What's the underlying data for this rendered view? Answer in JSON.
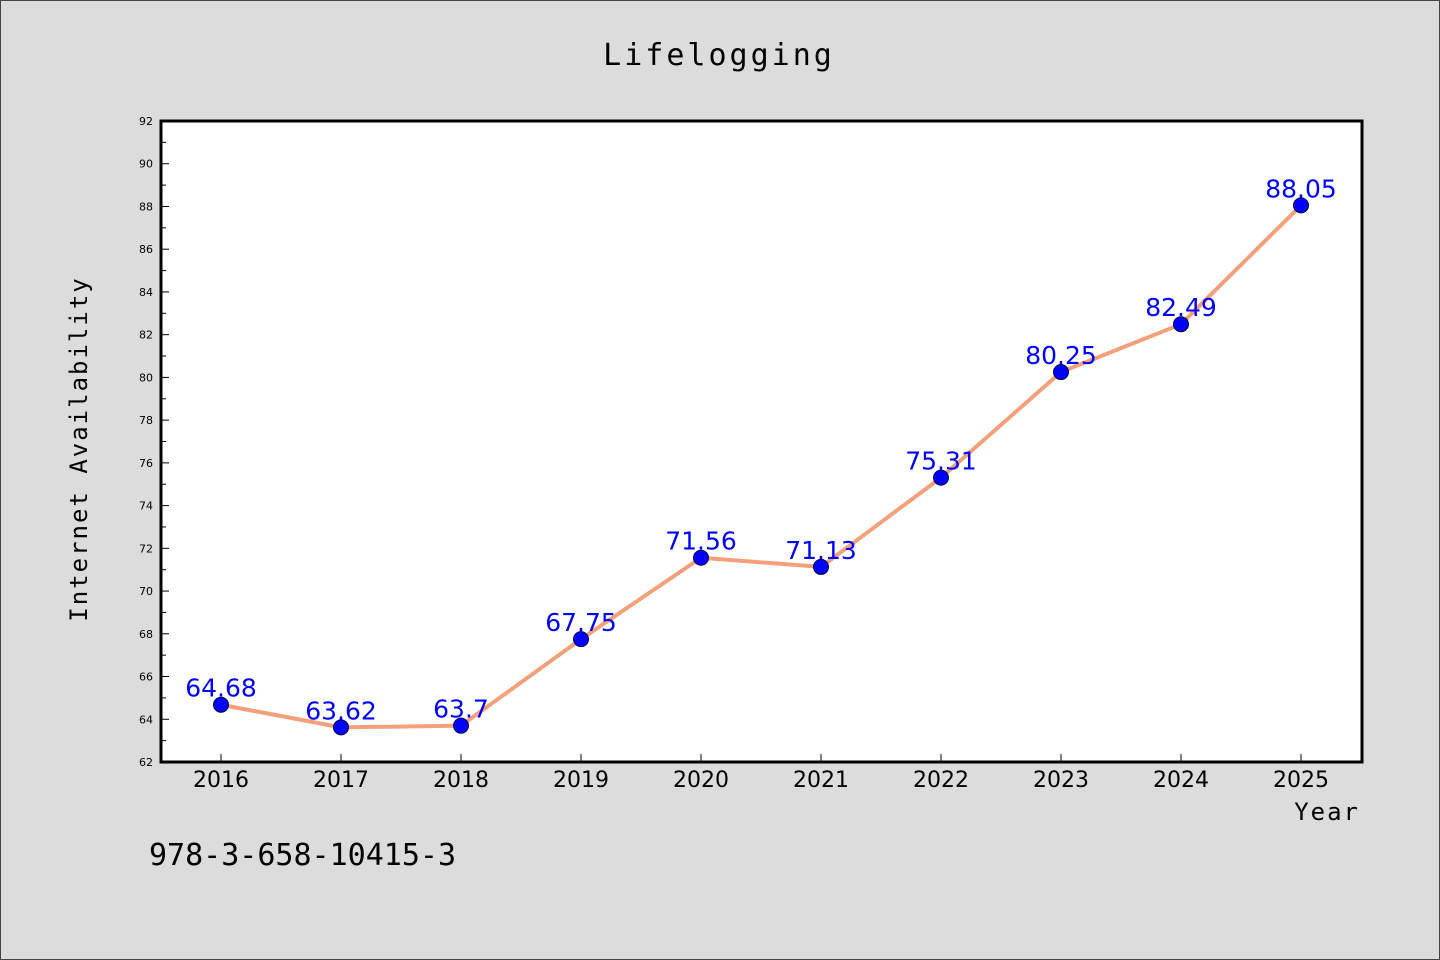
{
  "chart_data": {
    "type": "line",
    "title": "Lifelogging",
    "xlabel": "Year",
    "ylabel": "Internet Availability",
    "categories": [
      "2016",
      "2017",
      "2018",
      "2019",
      "2020",
      "2021",
      "2022",
      "2023",
      "2024",
      "2025"
    ],
    "values": [
      64.68,
      63.62,
      63.7,
      67.75,
      71.56,
      71.13,
      75.31,
      80.25,
      82.49,
      88.05
    ],
    "data_labels": [
      "64.68",
      "63.62",
      "63.7",
      "67.75",
      "71.56",
      "71.13",
      "75.31",
      "80.25",
      "82.49",
      "88.05"
    ],
    "ylim": [
      62,
      92
    ],
    "yticks": [
      62,
      64,
      66,
      68,
      70,
      72,
      74,
      76,
      78,
      80,
      82,
      84,
      86,
      88,
      90,
      92
    ],
    "grid": false,
    "legend": "none",
    "line_color": "#f4a07a",
    "marker_color": "#0000ff",
    "label_color": "#0000ff"
  },
  "footer": {
    "isbn": "978-3-658-10415-3"
  }
}
